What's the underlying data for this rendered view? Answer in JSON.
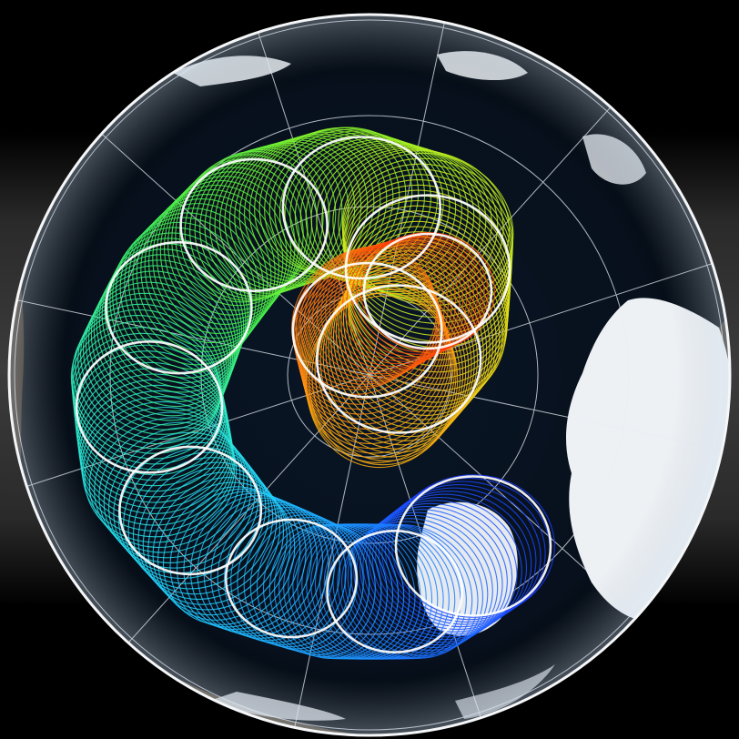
{
  "map": {
    "projection": "north-polar-stereographic",
    "view": "arctic",
    "colors": {
      "ocean": "#06101c",
      "land": "#5a4a36",
      "ice": "#f2f4f6",
      "graticule": "#e8eef5",
      "rim": "#ffffff",
      "highlight_circle": "#ffffff"
    },
    "track": {
      "description_gradient": [
        "#1a3cff",
        "#1c8cff",
        "#22d2ff",
        "#2ef0c0",
        "#44f04a",
        "#8cf028",
        "#e8e818",
        "#ff9a10",
        "#ff3a08"
      ],
      "ring_count": 70
    }
  }
}
